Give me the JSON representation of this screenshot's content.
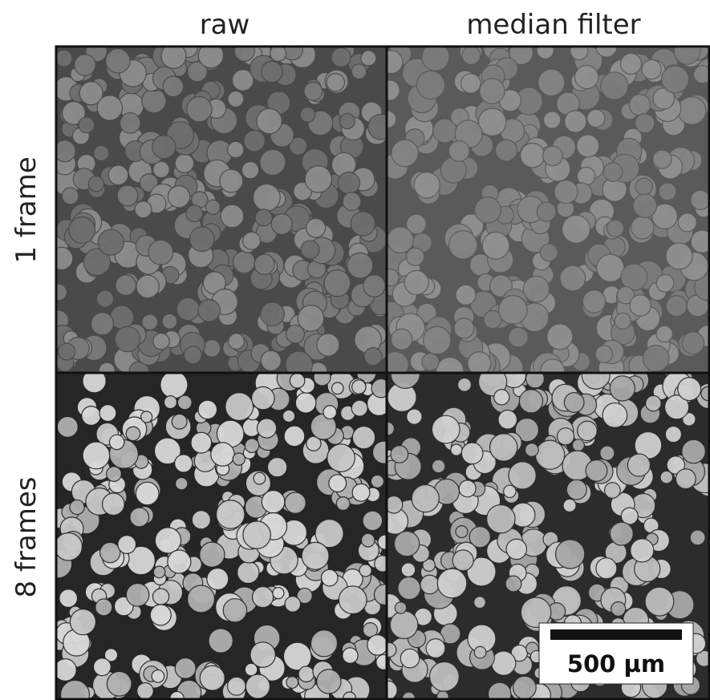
{
  "columns": [
    "raw",
    "median filter"
  ],
  "rows": [
    "1 frame",
    "8 frames"
  ],
  "scale_bar": "500 µm"
}
